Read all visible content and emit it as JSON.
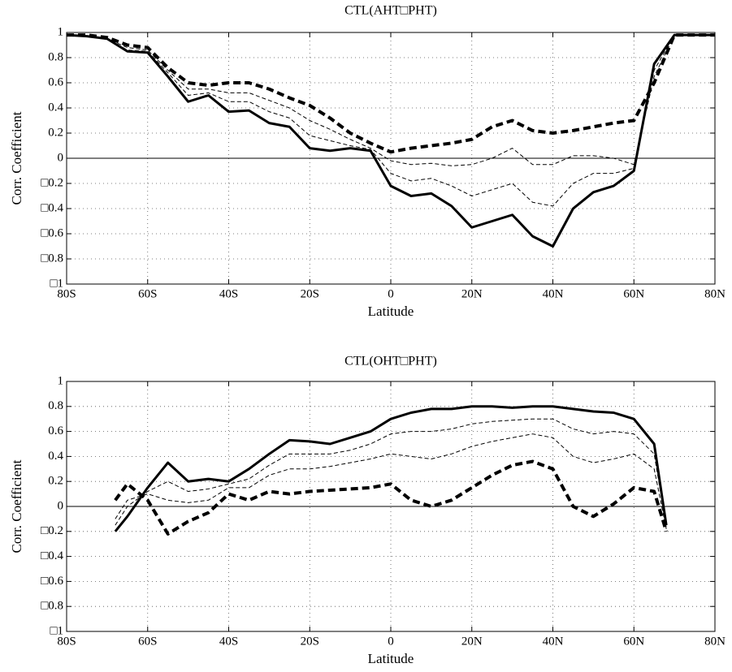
{
  "chart_data": [
    {
      "type": "line",
      "title": "CTL(AHT□PHT)",
      "xlabel": "Latitude",
      "ylabel": "Corr. Coefficient",
      "xlim": [
        -80,
        80
      ],
      "ylim": [
        -1,
        1
      ],
      "grid": true,
      "xticks": [
        {
          "value": -80,
          "label": "80S"
        },
        {
          "value": -60,
          "label": "60S"
        },
        {
          "value": -40,
          "label": "40S"
        },
        {
          "value": -20,
          "label": "20S"
        },
        0,
        {
          "value": 20,
          "label": "20N"
        },
        {
          "value": 40,
          "label": "40N"
        },
        {
          "value": 60,
          "label": "60N"
        },
        {
          "value": 80,
          "label": "80N"
        }
      ],
      "yticks": [
        {
          "value": -1,
          "label": "□1"
        },
        {
          "value": -0.8,
          "label": "□0.8"
        },
        {
          "value": -0.6,
          "label": "□0.6"
        },
        {
          "value": -0.4,
          "label": "□0.4"
        },
        {
          "value": -0.2,
          "label": "□0.2"
        },
        0,
        0.2,
        0.4,
        0.6,
        0.8,
        1
      ],
      "x": [
        -80,
        -75,
        -70,
        -65,
        -60,
        -55,
        -50,
        -45,
        -40,
        -35,
        -30,
        -25,
        -20,
        -15,
        -10,
        -5,
        0,
        5,
        10,
        15,
        20,
        25,
        30,
        35,
        40,
        45,
        50,
        55,
        60,
        65,
        70,
        75,
        80
      ],
      "series": [
        {
          "color": "#000000",
          "style": "thin-dashed",
          "values": [
            0.98,
            0.97,
            0.95,
            0.88,
            0.86,
            0.7,
            0.55,
            0.55,
            0.52,
            0.52,
            0.46,
            0.4,
            0.3,
            0.23,
            0.15,
            0.08,
            -0.02,
            -0.05,
            -0.04,
            -0.06,
            -0.05,
            0.0,
            0.08,
            -0.05,
            -0.05,
            0.02,
            0.02,
            0.0,
            -0.05,
            0.65,
            0.98,
            0.98,
            0.98
          ]
        },
        {
          "color": "#000000",
          "style": "thin-dashed",
          "values": [
            0.98,
            0.97,
            0.95,
            0.86,
            0.85,
            0.68,
            0.5,
            0.52,
            0.45,
            0.45,
            0.37,
            0.32,
            0.18,
            0.14,
            0.1,
            0.07,
            -0.12,
            -0.18,
            -0.16,
            -0.22,
            -0.3,
            -0.25,
            -0.2,
            -0.35,
            -0.38,
            -0.2,
            -0.12,
            -0.12,
            -0.08,
            0.7,
            0.98,
            0.98,
            0.98
          ]
        },
        {
          "color": "#000000",
          "style": "bold-dashed",
          "values": [
            0.98,
            0.98,
            0.96,
            0.9,
            0.88,
            0.72,
            0.6,
            0.58,
            0.6,
            0.6,
            0.55,
            0.48,
            0.42,
            0.32,
            0.2,
            0.12,
            0.05,
            0.08,
            0.1,
            0.12,
            0.15,
            0.25,
            0.3,
            0.22,
            0.2,
            0.22,
            0.25,
            0.28,
            0.3,
            0.6,
            0.98,
            0.98,
            0.98
          ]
        },
        {
          "color": "#000000",
          "style": "bold-solid",
          "values": [
            0.98,
            0.97,
            0.95,
            0.85,
            0.84,
            0.65,
            0.45,
            0.5,
            0.37,
            0.38,
            0.28,
            0.25,
            0.08,
            0.06,
            0.08,
            0.06,
            -0.22,
            -0.3,
            -0.28,
            -0.38,
            -0.55,
            -0.5,
            -0.45,
            -0.62,
            -0.7,
            -0.4,
            -0.27,
            -0.22,
            -0.1,
            0.75,
            0.98,
            0.98,
            0.98
          ]
        }
      ]
    },
    {
      "type": "line",
      "title": "CTL(OHT□PHT)",
      "xlabel": "Latitude",
      "ylabel": "Corr. Coefficient",
      "xlim": [
        -80,
        80
      ],
      "ylim": [
        -1,
        1
      ],
      "grid": true,
      "xticks": [
        {
          "value": -80,
          "label": "80S"
        },
        {
          "value": -60,
          "label": "60S"
        },
        {
          "value": -40,
          "label": "40S"
        },
        {
          "value": -20,
          "label": "20S"
        },
        0,
        {
          "value": 20,
          "label": "20N"
        },
        {
          "value": 40,
          "label": "40N"
        },
        {
          "value": 60,
          "label": "60N"
        },
        {
          "value": 80,
          "label": "80N"
        }
      ],
      "yticks": [
        {
          "value": -1,
          "label": "□1"
        },
        {
          "value": -0.8,
          "label": "□0.8"
        },
        {
          "value": -0.6,
          "label": "□0.6"
        },
        {
          "value": -0.4,
          "label": "□0.4"
        },
        {
          "value": -0.2,
          "label": "□0.2"
        },
        0,
        0.2,
        0.4,
        0.6,
        0.8,
        1
      ],
      "x": [
        -68,
        -65,
        -60,
        -55,
        -50,
        -45,
        -40,
        -35,
        -30,
        -25,
        -20,
        -15,
        -10,
        -5,
        0,
        5,
        10,
        15,
        20,
        25,
        30,
        35,
        40,
        45,
        50,
        55,
        60,
        65,
        68
      ],
      "series": [
        {
          "color": "#000000",
          "style": "thin-dashed",
          "values": [
            -0.1,
            0.05,
            0.1,
            0.05,
            0.03,
            0.05,
            0.15,
            0.15,
            0.25,
            0.3,
            0.3,
            0.32,
            0.35,
            0.38,
            0.42,
            0.4,
            0.38,
            0.42,
            0.48,
            0.52,
            0.55,
            0.58,
            0.55,
            0.4,
            0.35,
            0.38,
            0.42,
            0.3,
            -0.18
          ]
        },
        {
          "color": "#000000",
          "style": "thin-dashed",
          "values": [
            -0.15,
            0.0,
            0.12,
            0.2,
            0.12,
            0.14,
            0.18,
            0.22,
            0.33,
            0.42,
            0.42,
            0.42,
            0.45,
            0.5,
            0.58,
            0.6,
            0.6,
            0.62,
            0.66,
            0.68,
            0.69,
            0.7,
            0.7,
            0.62,
            0.58,
            0.6,
            0.58,
            0.42,
            -0.16
          ]
        },
        {
          "color": "#000000",
          "style": "bold-dashed",
          "values": [
            0.05,
            0.18,
            0.05,
            -0.22,
            -0.12,
            -0.05,
            0.1,
            0.05,
            0.12,
            0.1,
            0.12,
            0.13,
            0.14,
            0.15,
            0.18,
            0.05,
            0.0,
            0.05,
            0.15,
            0.25,
            0.33,
            0.36,
            0.3,
            0.0,
            -0.08,
            0.02,
            0.15,
            0.12,
            -0.2
          ]
        },
        {
          "color": "#000000",
          "style": "bold-solid",
          "values": [
            -0.2,
            -0.08,
            0.15,
            0.35,
            0.2,
            0.22,
            0.2,
            0.3,
            0.42,
            0.53,
            0.52,
            0.5,
            0.55,
            0.6,
            0.7,
            0.75,
            0.78,
            0.78,
            0.8,
            0.8,
            0.79,
            0.8,
            0.8,
            0.78,
            0.76,
            0.75,
            0.7,
            0.5,
            -0.15
          ]
        }
      ]
    }
  ]
}
